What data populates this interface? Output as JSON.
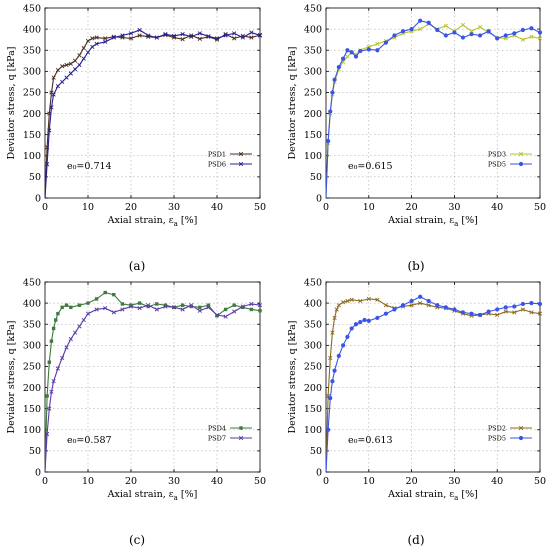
{
  "chart_data": [
    {
      "type": "line",
      "panel_label": "(a)",
      "xlabel": "Axial strain, ε",
      "xlabel_sub": "a",
      "xlabel_unit": " [%]",
      "ylabel": "Deviator stress, q [kPa]",
      "xlim": [
        0,
        50
      ],
      "ylim": [
        0,
        450
      ],
      "xticks": [
        "0",
        "10",
        "20",
        "30",
        "40",
        "50"
      ],
      "yticks": [
        "0",
        "50",
        "100",
        "150",
        "200",
        "250",
        "300",
        "350",
        "400",
        "450"
      ],
      "grid": true,
      "legend_position": "bottom-right",
      "annotation": "e₀=0.714",
      "series": [
        {
          "name": "PSD1",
          "color": "#4a2e1f",
          "marker": "x",
          "x": [
            0,
            0.5,
            1,
            1.5,
            2,
            3,
            4,
            5,
            6,
            7,
            8,
            9,
            10,
            11,
            12,
            14,
            16,
            18,
            20,
            22,
            24,
            26,
            28,
            30,
            32,
            34,
            36,
            38,
            40,
            42,
            44,
            46,
            48,
            50
          ],
          "y": [
            0,
            120,
            200,
            250,
            285,
            303,
            312,
            315,
            318,
            325,
            338,
            355,
            372,
            378,
            380,
            378,
            382,
            380,
            378,
            385,
            382,
            380,
            386,
            380,
            376,
            385,
            377,
            382,
            375,
            388,
            378,
            384,
            380,
            386
          ]
        },
        {
          "name": "PSD6",
          "color": "#2a1f8f",
          "marker": "x",
          "x": [
            0,
            0.5,
            1,
            1.5,
            2,
            3,
            4,
            5,
            6,
            7,
            8,
            9,
            10,
            11,
            12,
            14,
            16,
            18,
            20,
            22,
            24,
            26,
            28,
            30,
            32,
            34,
            36,
            38,
            40,
            42,
            44,
            46,
            48,
            50
          ],
          "y": [
            0,
            80,
            160,
            215,
            245,
            265,
            275,
            285,
            295,
            305,
            315,
            330,
            345,
            358,
            365,
            370,
            380,
            385,
            390,
            398,
            385,
            380,
            388,
            384,
            388,
            382,
            390,
            383,
            378,
            385,
            390,
            380,
            392,
            385
          ]
        }
      ]
    },
    {
      "type": "line",
      "panel_label": "(b)",
      "xlabel": "Axial strain, ε",
      "xlabel_sub": "a",
      "xlabel_unit": " [%]",
      "ylabel": "Deviator stress, q [kPa]",
      "xlim": [
        0,
        50
      ],
      "ylim": [
        0,
        450
      ],
      "xticks": [
        "0",
        "10",
        "20",
        "30",
        "40",
        "50"
      ],
      "yticks": [
        "0",
        "50",
        "100",
        "150",
        "200",
        "250",
        "300",
        "350",
        "400",
        "450"
      ],
      "grid": true,
      "legend_position": "bottom-right",
      "annotation": "e₀=0.615",
      "series": [
        {
          "name": "PSD3",
          "color": "#b9c42a",
          "marker": "x",
          "x": [
            0,
            0.5,
            1,
            1.5,
            2,
            3,
            4,
            5,
            6,
            7,
            8,
            10,
            12,
            14,
            16,
            18,
            20,
            22,
            24,
            26,
            28,
            30,
            32,
            34,
            36,
            38,
            40,
            42,
            44,
            46,
            48,
            50
          ],
          "y": [
            0,
            130,
            200,
            245,
            275,
            305,
            322,
            335,
            345,
            340,
            350,
            358,
            365,
            372,
            380,
            390,
            395,
            400,
            412,
            400,
            408,
            395,
            410,
            395,
            405,
            392,
            380,
            378,
            385,
            375,
            382,
            378
          ]
        },
        {
          "name": "PSD5",
          "color": "#3a55e6",
          "marker": "o",
          "x": [
            0,
            0.5,
            1,
            1.5,
            2,
            3,
            4,
            5,
            6,
            7,
            8,
            10,
            12,
            14,
            16,
            18,
            20,
            22,
            24,
            26,
            28,
            30,
            32,
            34,
            36,
            38,
            40,
            42,
            44,
            46,
            48,
            50
          ],
          "y": [
            0,
            135,
            205,
            250,
            280,
            310,
            330,
            350,
            345,
            335,
            348,
            352,
            350,
            368,
            385,
            395,
            400,
            420,
            415,
            398,
            385,
            392,
            380,
            388,
            385,
            395,
            378,
            385,
            390,
            398,
            402,
            392
          ]
        }
      ]
    },
    {
      "type": "line",
      "panel_label": "(c)",
      "xlabel": "Axial strain, ε",
      "xlabel_sub": "a",
      "xlabel_unit": " [%]",
      "ylabel": "Deviator stress, q [kPa]",
      "xlim": [
        0,
        50
      ],
      "ylim": [
        0,
        450
      ],
      "xticks": [
        "0",
        "10",
        "20",
        "30",
        "40",
        "50"
      ],
      "yticks": [
        "0",
        "50",
        "100",
        "150",
        "200",
        "250",
        "300",
        "350",
        "400",
        "450"
      ],
      "grid": true,
      "legend_position": "bottom-right",
      "annotation": "e₀=0.587",
      "series": [
        {
          "name": "PSD4",
          "color": "#3f7a3f",
          "marker": "s",
          "x": [
            0,
            0.5,
            1,
            1.5,
            2,
            2.5,
            3,
            4,
            5,
            6,
            8,
            10,
            12,
            14,
            16,
            18,
            20,
            22,
            24,
            26,
            28,
            30,
            32,
            34,
            36,
            38,
            40,
            42,
            44,
            46,
            48,
            50
          ],
          "y": [
            0,
            180,
            260,
            310,
            340,
            360,
            375,
            390,
            395,
            390,
            395,
            400,
            410,
            425,
            420,
            398,
            395,
            400,
            392,
            398,
            395,
            390,
            395,
            392,
            390,
            395,
            370,
            385,
            395,
            390,
            385,
            382
          ]
        },
        {
          "name": "PSD7",
          "color": "#5a3aa8",
          "marker": "x",
          "x": [
            0,
            0.5,
            1,
            1.5,
            2,
            3,
            4,
            5,
            6,
            7,
            8,
            9,
            10,
            12,
            14,
            16,
            18,
            20,
            22,
            24,
            26,
            28,
            30,
            32,
            34,
            36,
            38,
            40,
            42,
            44,
            46,
            48,
            50
          ],
          "y": [
            0,
            90,
            150,
            190,
            215,
            245,
            270,
            295,
            315,
            330,
            345,
            360,
            375,
            385,
            388,
            378,
            385,
            392,
            388,
            395,
            385,
            392,
            390,
            385,
            395,
            382,
            390,
            372,
            368,
            380,
            392,
            398,
            395
          ]
        }
      ]
    },
    {
      "type": "line",
      "panel_label": "(d)",
      "xlabel": "Axial strain, ε",
      "xlabel_sub": "a",
      "xlabel_unit": " [%]",
      "ylabel": "Deviator stress, q [kPa]",
      "xlim": [
        0,
        50
      ],
      "ylim": [
        0,
        450
      ],
      "xticks": [
        "0",
        "10",
        "20",
        "30",
        "40",
        "50"
      ],
      "yticks": [
        "0",
        "50",
        "100",
        "150",
        "200",
        "250",
        "300",
        "350",
        "400",
        "450"
      ],
      "grid": true,
      "legend_position": "bottom-right",
      "annotation": "e₀=0.613",
      "series": [
        {
          "name": "PSD2",
          "color": "#8a6a1f",
          "marker": "x",
          "x": [
            0,
            0.5,
            1,
            1.5,
            2,
            2.5,
            3,
            4,
            5,
            6,
            8,
            10,
            12,
            14,
            16,
            18,
            20,
            22,
            24,
            26,
            28,
            30,
            32,
            34,
            36,
            38,
            40,
            42,
            44,
            46,
            48,
            50
          ],
          "y": [
            0,
            180,
            270,
            330,
            365,
            385,
            395,
            402,
            405,
            408,
            405,
            410,
            408,
            395,
            388,
            392,
            395,
            400,
            395,
            390,
            388,
            382,
            375,
            370,
            372,
            375,
            372,
            380,
            378,
            385,
            378,
            375
          ]
        },
        {
          "name": "PSD5",
          "color": "#3a55e6",
          "marker": "o",
          "x": [
            0,
            0.5,
            1,
            1.5,
            2,
            3,
            4,
            5,
            6,
            7,
            8,
            9,
            10,
            12,
            14,
            16,
            18,
            20,
            22,
            24,
            26,
            28,
            30,
            32,
            34,
            36,
            38,
            40,
            42,
            44,
            46,
            48,
            50
          ],
          "y": [
            0,
            100,
            175,
            215,
            240,
            275,
            300,
            320,
            340,
            350,
            355,
            360,
            358,
            365,
            375,
            385,
            395,
            405,
            415,
            405,
            395,
            390,
            385,
            378,
            375,
            372,
            380,
            385,
            390,
            392,
            398,
            400,
            398
          ]
        }
      ]
    }
  ]
}
